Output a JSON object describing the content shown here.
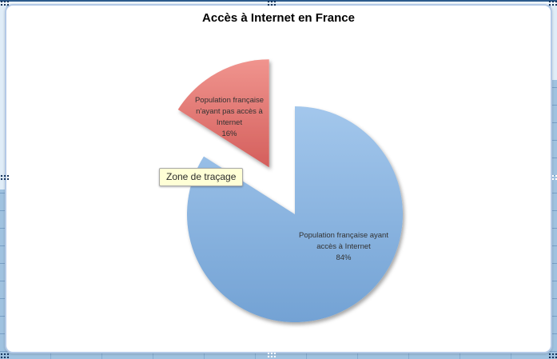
{
  "chart": {
    "tooltip_text": "Zone de traçage"
  },
  "chart_data": {
    "type": "pie",
    "title": "Accès à Internet en France",
    "labels": [
      "Population française ayant accès à Internet",
      "Population française n'ayant pas accès à Internet"
    ],
    "values": [
      84,
      16
    ],
    "unit": "%",
    "legend_position": "none",
    "start_angle_deg": 0,
    "direction": "clockwise",
    "slices": [
      {
        "label_lines": "Population française ayant\naccès à Internet\n84%",
        "value": 84,
        "exploded": false,
        "color_light": "#a3c7ec",
        "color_dark": "#73a2d4"
      },
      {
        "label_lines": "Population française\nn'ayant pas accès à\nInternet\n16%",
        "value": 16,
        "exploded": true,
        "color_light": "#f0948e",
        "color_dark": "#d45f5c"
      }
    ]
  },
  "colors": {
    "sheet_fill": "#9fc2e0",
    "sheet_light": "#e0edf8",
    "selection_line": "#2c5a8c",
    "chart_border": "#b3c9e7",
    "handle_dark": "#17365d",
    "handle_light": "#ffffff",
    "tooltip_bg": "#ffffd6",
    "label_text": "#323232"
  }
}
